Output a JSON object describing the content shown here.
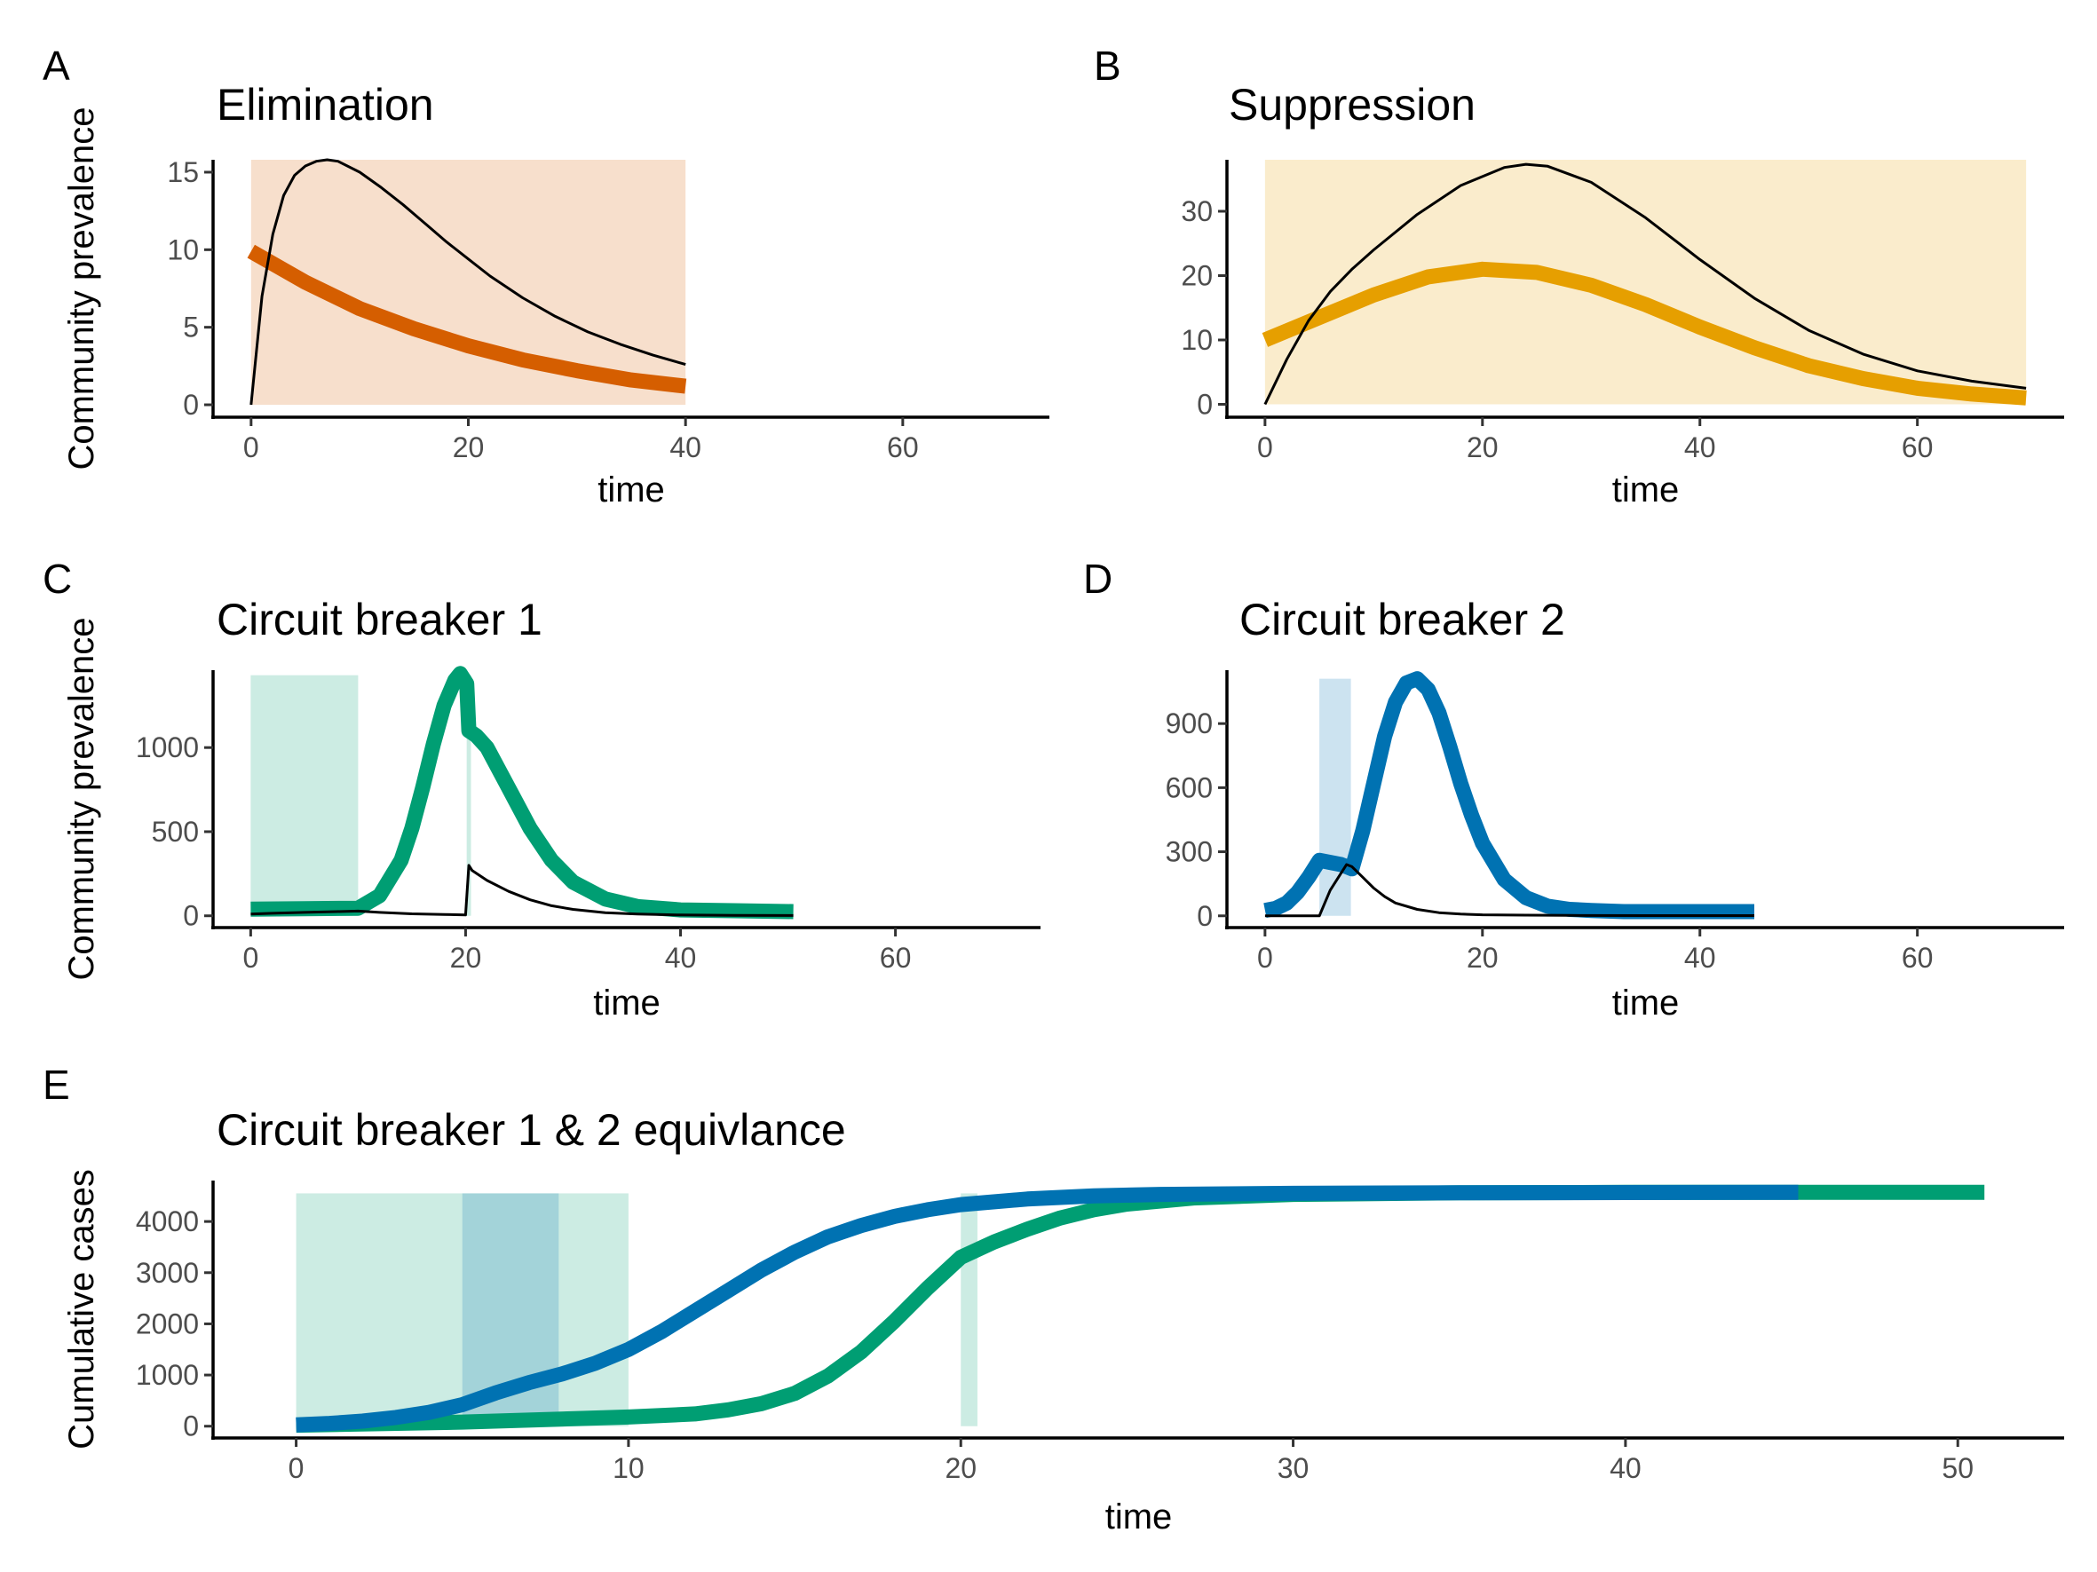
{
  "colors": {
    "elimination": "#D55E00",
    "suppression": "#E69F00",
    "breaker1": "#009E73",
    "breaker2": "#0072B2",
    "untreated": "#000000"
  },
  "chart_data": [
    {
      "id": "A",
      "type": "line",
      "panel_letter": "A",
      "title": "Elimination",
      "xlabel": "time",
      "ylabel": "Community prevalence",
      "xlim": [
        -3.5,
        73.5
      ],
      "ylim": [
        -0.8,
        15.8
      ],
      "xticks": [
        0,
        20,
        40,
        60
      ],
      "yticks": [
        0,
        5,
        10,
        15
      ],
      "shading": [
        {
          "x0": 0,
          "x1": 40,
          "y0": 0,
          "y1": 15.8,
          "color": "#D55E00",
          "opacity": 0.2
        }
      ],
      "series": [
        {
          "role": "treated",
          "color": "#D55E00",
          "width": 17,
          "x": [
            0,
            5,
            10,
            15,
            20,
            25,
            30,
            35,
            40
          ],
          "y": [
            9.9,
            7.9,
            6.2,
            4.9,
            3.8,
            2.9,
            2.2,
            1.6,
            1.2
          ]
        },
        {
          "role": "untreated",
          "color": "#000000",
          "width": 3,
          "x": [
            0,
            1,
            2,
            3,
            4,
            5,
            6,
            7,
            8,
            10,
            12,
            14,
            16,
            18,
            20,
            22,
            25,
            28,
            31,
            34,
            37,
            40
          ],
          "y": [
            0,
            7,
            11,
            13.5,
            14.8,
            15.4,
            15.7,
            15.8,
            15.7,
            15.0,
            14.0,
            12.9,
            11.7,
            10.5,
            9.4,
            8.3,
            6.9,
            5.7,
            4.7,
            3.9,
            3.2,
            2.6
          ]
        }
      ]
    },
    {
      "id": "B",
      "type": "line",
      "panel_letter": "B",
      "title": "Suppression",
      "xlabel": "time",
      "ylabel": "",
      "xlim": [
        -3.5,
        73.5
      ],
      "ylim": [
        -2,
        38
      ],
      "xticks": [
        0,
        20,
        40,
        60
      ],
      "yticks": [
        0,
        10,
        20,
        30
      ],
      "shading": [
        {
          "x0": 0,
          "x1": 70,
          "y0": 0,
          "y1": 38,
          "color": "#E69F00",
          "opacity": 0.2
        }
      ],
      "series": [
        {
          "role": "treated",
          "color": "#E69F00",
          "width": 17,
          "x": [
            0,
            5,
            10,
            15,
            20,
            25,
            30,
            35,
            40,
            45,
            50,
            55,
            60,
            65,
            70
          ],
          "y": [
            10,
            13.5,
            17,
            19.8,
            21,
            20.5,
            18.5,
            15.5,
            12,
            8.8,
            6,
            4,
            2.5,
            1.6,
            1
          ]
        },
        {
          "role": "untreated",
          "color": "#000000",
          "width": 3,
          "x": [
            0,
            2,
            4,
            6,
            8,
            10,
            14,
            18,
            22,
            24,
            26,
            30,
            35,
            40,
            45,
            50,
            55,
            60,
            65,
            70
          ],
          "y": [
            0,
            7,
            13,
            17.5,
            21,
            24,
            29.5,
            34,
            36.8,
            37.3,
            37,
            34.5,
            29,
            22.5,
            16.5,
            11.5,
            7.8,
            5.2,
            3.6,
            2.5
          ]
        }
      ]
    },
    {
      "id": "C",
      "type": "line",
      "panel_letter": "C",
      "title": "Circuit breaker 1",
      "xlabel": "time",
      "ylabel": "Community prevalence",
      "xlim": [
        -3.5,
        73.5
      ],
      "ylim": [
        -70,
        1460
      ],
      "xticks": [
        0,
        20,
        40,
        60
      ],
      "yticks": [
        0,
        500,
        1000
      ],
      "shading": [
        {
          "x0": 0,
          "x1": 10,
          "y0": 0,
          "y1": 1430,
          "color": "#009E73",
          "opacity": 0.2
        },
        {
          "x0": 20.1,
          "x1": 20.5,
          "y0": 0,
          "y1": 1430,
          "color": "#009E73",
          "opacity": 0.2
        }
      ],
      "series": [
        {
          "role": "treated",
          "color": "#009E73",
          "width": 17,
          "x": [
            0,
            5,
            10,
            12,
            14,
            15,
            16,
            17,
            18,
            19,
            19.5,
            20.1,
            20.3,
            21,
            22,
            24,
            26,
            28,
            30,
            33,
            36,
            40,
            45,
            50.5
          ],
          "y": [
            40,
            42,
            45,
            120,
            330,
            520,
            760,
            1020,
            1250,
            1400,
            1440,
            1380,
            1100,
            1070,
            1000,
            760,
            520,
            330,
            200,
            100,
            55,
            35,
            30,
            25
          ]
        },
        {
          "role": "untreated",
          "color": "#000000",
          "width": 3,
          "x": [
            0,
            2,
            5,
            8,
            10,
            12,
            15,
            18,
            20,
            20.3,
            20.6,
            22,
            24,
            26,
            28,
            30,
            33,
            36,
            40,
            45,
            50.5
          ],
          "y": [
            10,
            15,
            20,
            25,
            28,
            20,
            12,
            8,
            5,
            300,
            270,
            210,
            145,
            95,
            60,
            38,
            18,
            10,
            5,
            3,
            2
          ]
        }
      ]
    },
    {
      "id": "D",
      "type": "line",
      "panel_letter": "D",
      "title": "Circuit breaker 2",
      "xlabel": "time",
      "ylabel": "",
      "xlim": [
        -3.5,
        73.5
      ],
      "ylim": [
        -55,
        1150
      ],
      "xticks": [
        0,
        20,
        40,
        60
      ],
      "yticks": [
        0,
        300,
        600,
        900
      ],
      "shading": [
        {
          "x0": 5,
          "x1": 7.9,
          "y0": 0,
          "y1": 1110,
          "color": "#0072B2",
          "opacity": 0.2
        }
      ],
      "series": [
        {
          "role": "treated",
          "color": "#0072B2",
          "width": 17,
          "x": [
            0,
            1,
            2,
            3,
            4,
            5,
            6,
            7,
            8,
            9,
            10,
            11,
            12,
            13,
            14,
            15,
            16,
            17,
            18,
            19,
            20,
            22,
            24,
            26,
            28,
            30,
            33,
            36,
            40,
            45
          ],
          "y": [
            25,
            35,
            60,
            110,
            180,
            260,
            250,
            240,
            220,
            400,
            620,
            840,
            1000,
            1090,
            1110,
            1060,
            950,
            790,
            620,
            470,
            340,
            170,
            85,
            45,
            30,
            25,
            20,
            20,
            20,
            20
          ]
        },
        {
          "role": "untreated",
          "color": "#000000",
          "width": 3,
          "x": [
            0,
            5,
            5.5,
            6,
            7,
            7.5,
            8,
            9,
            10,
            11,
            12,
            14,
            16,
            18,
            20,
            24,
            28,
            35,
            45
          ],
          "y": [
            0,
            0,
            60,
            120,
            200,
            240,
            230,
            180,
            130,
            90,
            60,
            30,
            15,
            8,
            5,
            3,
            2,
            1,
            1
          ]
        }
      ]
    },
    {
      "id": "E",
      "type": "line",
      "panel_letter": "E",
      "title": "Circuit breaker 1 & 2 equivlance",
      "xlabel": "time",
      "ylabel": "Cumulative cases",
      "xlim": [
        -2.5,
        53.2
      ],
      "ylim": [
        -230,
        4800
      ],
      "xticks": [
        0,
        10,
        20,
        30,
        40,
        50
      ],
      "yticks": [
        0,
        1000,
        2000,
        3000,
        4000
      ],
      "shading": [
        {
          "x0": 0,
          "x1": 10,
          "y0": 0,
          "y1": 4550,
          "color": "#009E73",
          "opacity": 0.2
        },
        {
          "x0": 20,
          "x1": 20.5,
          "y0": 0,
          "y1": 4550,
          "color": "#009E73",
          "opacity": 0.2
        },
        {
          "x0": 5,
          "x1": 7.9,
          "y0": 0,
          "y1": 4550,
          "color": "#0072B2",
          "opacity": 0.2
        }
      ],
      "series": [
        {
          "role": "breaker1",
          "color": "#009E73",
          "width": 17,
          "x": [
            0,
            5,
            10,
            12,
            13,
            14,
            15,
            16,
            17,
            18,
            19,
            20,
            20.5,
            21,
            22,
            23,
            24,
            25,
            27,
            30,
            35,
            40,
            45,
            50.8
          ],
          "y": [
            20,
            80,
            180,
            240,
            320,
            440,
            640,
            980,
            1450,
            2050,
            2700,
            3300,
            3450,
            3600,
            3850,
            4070,
            4230,
            4340,
            4460,
            4530,
            4560,
            4570,
            4570,
            4570
          ]
        },
        {
          "role": "breaker2",
          "color": "#0072B2",
          "width": 17,
          "x": [
            0,
            1,
            2,
            3,
            4,
            5,
            6,
            7,
            8,
            9,
            10,
            11,
            12,
            13,
            14,
            15,
            16,
            17,
            18,
            19,
            20,
            22,
            24,
            26,
            30,
            35,
            40,
            45.2
          ],
          "y": [
            25,
            55,
            100,
            170,
            270,
            420,
            650,
            850,
            1020,
            1230,
            1500,
            1850,
            2250,
            2650,
            3050,
            3400,
            3700,
            3920,
            4100,
            4230,
            4330,
            4440,
            4500,
            4530,
            4550,
            4560,
            4565,
            4570
          ]
        }
      ]
    }
  ]
}
